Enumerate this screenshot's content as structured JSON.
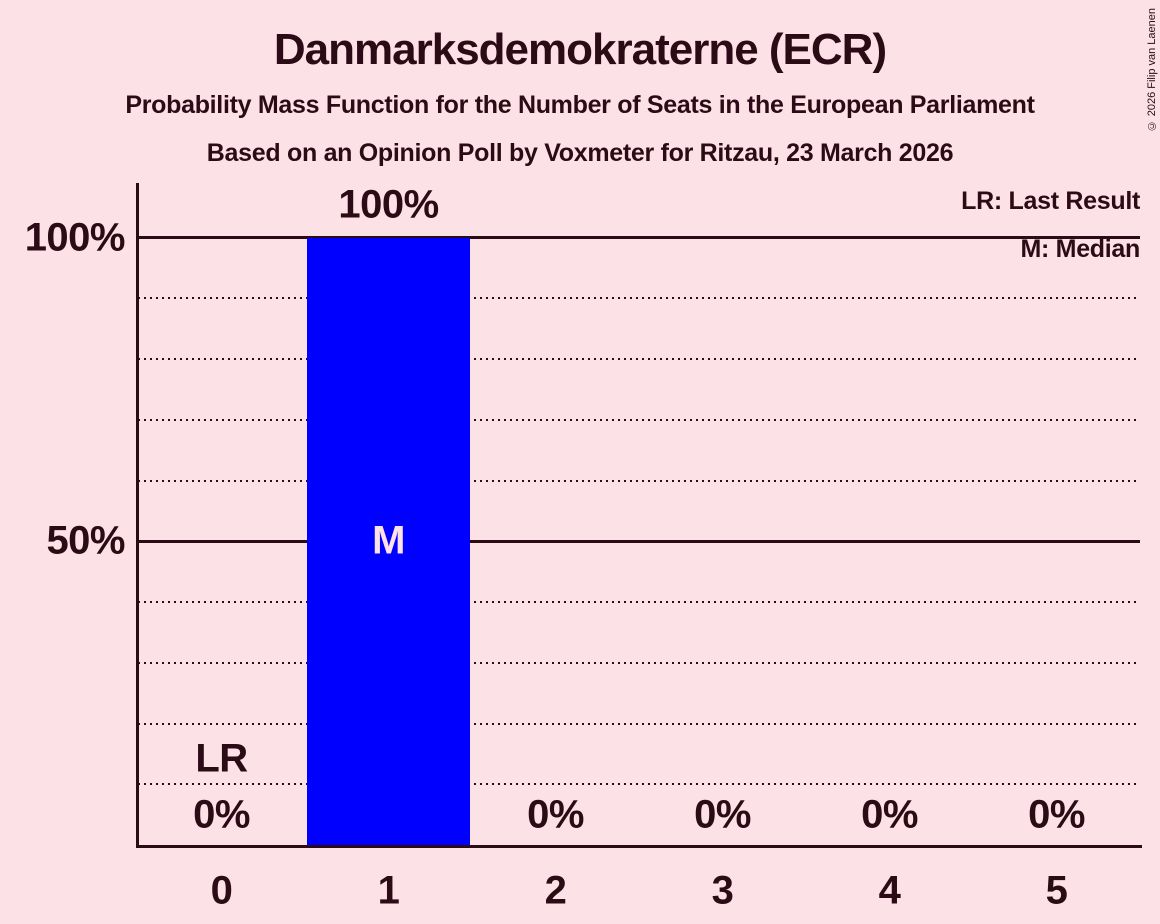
{
  "header": {
    "title": "Danmarksdemokraterne (ECR)",
    "subtitle": "Probability Mass Function for the Number of Seats in the European Parliament",
    "poll_line": "Based on an Opinion Poll by Voxmeter for Ritzau, 23 March 2026"
  },
  "copyright": "© 2026 Filip van Laenen",
  "legend": {
    "last_result": "LR: Last Result",
    "median": "M: Median"
  },
  "colors": {
    "background": "#fce1e7",
    "ink": "#2b0c16",
    "bar": "#0000ff",
    "median_label_on_bar": "#fce1e7"
  },
  "chart_data": {
    "type": "bar",
    "title": "Danmarksdemokraterne (ECR)",
    "categories": [
      "0",
      "1",
      "2",
      "3",
      "4",
      "5"
    ],
    "values": [
      0,
      100,
      0,
      0,
      0,
      0
    ],
    "value_labels": [
      "0%",
      "100%",
      "0%",
      "0%",
      "0%",
      "0%"
    ],
    "xlabel": "",
    "ylabel": "",
    "ylim": [
      0,
      100
    ],
    "y_ticks": [
      {
        "pct": 100,
        "label": "100%"
      },
      {
        "pct": 50,
        "label": "50%"
      }
    ],
    "gridlines": [
      {
        "pct": 10,
        "style": "dotted"
      },
      {
        "pct": 20,
        "style": "dotted"
      },
      {
        "pct": 30,
        "style": "dotted"
      },
      {
        "pct": 40,
        "style": "dotted"
      },
      {
        "pct": 50,
        "style": "solid"
      },
      {
        "pct": 60,
        "style": "dotted"
      },
      {
        "pct": 70,
        "style": "dotted"
      },
      {
        "pct": 80,
        "style": "dotted"
      },
      {
        "pct": 90,
        "style": "dotted"
      },
      {
        "pct": 100,
        "style": "solid"
      }
    ],
    "median": {
      "category_index": 1,
      "marker": "M"
    },
    "last_result": {
      "category_index": 0,
      "marker": "LR"
    },
    "legend_position": "top-right",
    "grid": "horizontal-dotted"
  }
}
